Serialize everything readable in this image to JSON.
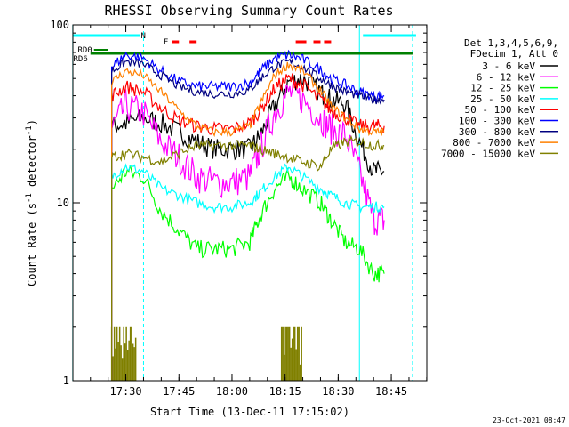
{
  "chart_data": {
    "type": "line",
    "title": "RHESSI Observing Summary Count Rates",
    "xlabel": "Start Time (13-Dec-11 17:15:02)",
    "ylabel": "Count Rate (s",
    "ylabel_sup": "-1",
    "ylabel_tail": " detector",
    "ylabel_end": ")",
    "ylog": true,
    "ylim": [
      1,
      100
    ],
    "xlim": [
      "17:15:02",
      "18:55:02"
    ],
    "y_ticks": [
      "1",
      "10",
      "100"
    ],
    "x_ticks": [
      "17:30",
      "17:45",
      "18:00",
      "18:15",
      "18:30",
      "18:45"
    ],
    "legend": {
      "header": [
        "Det 1,3,4,5,6,9,",
        "FDecim 1, Att 0"
      ],
      "placement": "right"
    },
    "footer_timestamp": "23-Oct-2021 08:47",
    "flags": [
      {
        "label": "N",
        "color": "#00ffff",
        "segments": [
          [
            "17:15",
            "17:34"
          ],
          [
            "18:37",
            "18:52"
          ]
        ]
      },
      {
        "label": "F",
        "color": "#ff0000",
        "segments": [
          [
            "17:43",
            "17:45"
          ],
          [
            "17:48",
            "17:50"
          ],
          [
            "18:18",
            "18:21"
          ],
          [
            "18:23",
            "18:25"
          ],
          [
            "18:26",
            "18:28"
          ]
        ]
      },
      {
        "label": "RD0",
        "color": "#008000",
        "segments": [
          [
            "17:21",
            "17:25"
          ]
        ]
      },
      {
        "label": "RD6",
        "color": "#008000",
        "segments": [
          [
            "17:20",
            "18:51"
          ]
        ]
      }
    ],
    "vlines": [
      {
        "time": "17:15",
        "color": "#00ffff",
        "style": "solid"
      },
      {
        "time": "17:35",
        "color": "#00ffff",
        "style": "dashed"
      },
      {
        "time": "18:36",
        "color": "#00ffff",
        "style": "solid"
      },
      {
        "time": "18:51",
        "color": "#00ffff",
        "style": "dashed"
      }
    ],
    "x_knots": [
      "17:26",
      "17:30",
      "17:35",
      "17:40",
      "17:45",
      "17:50",
      "17:55",
      "18:00",
      "18:05",
      "18:08",
      "18:12",
      "18:16",
      "18:20",
      "18:25",
      "18:28",
      "18:32",
      "18:36",
      "18:40",
      "18:43"
    ],
    "series": [
      {
        "name": "3 - 6 keV",
        "color": "#000000",
        "values": [
          27,
          28,
          30,
          28,
          25,
          22,
          20,
          20,
          20,
          24,
          35,
          48,
          50,
          42,
          38,
          36,
          22,
          15,
          15
        ]
      },
      {
        "name": "6 - 12 keV",
        "color": "#ff00ff",
        "values": [
          26,
          35,
          32,
          22,
          18,
          14,
          13,
          13,
          14,
          20,
          32,
          42,
          38,
          30,
          26,
          24,
          15,
          8,
          8
        ]
      },
      {
        "name": "12 - 25 keV",
        "color": "#00ff00",
        "values": [
          12,
          15,
          14,
          9,
          7,
          5.5,
          5.5,
          5.5,
          6,
          8.5,
          12,
          14,
          12,
          10,
          8,
          6,
          5.5,
          4,
          4
        ]
      },
      {
        "name": "25 - 50 keV",
        "color": "#00ffff",
        "values": [
          14,
          16,
          15,
          12,
          11,
          10,
          9.5,
          9.5,
          10,
          11.5,
          14,
          16,
          14,
          12,
          11,
          10,
          9.5,
          9.5,
          9.5
        ]
      },
      {
        "name": "50 - 100 keV",
        "color": "#ff0000",
        "values": [
          40,
          45,
          42,
          34,
          29,
          27,
          26,
          26,
          28,
          33,
          44,
          50,
          46,
          38,
          33,
          30,
          27,
          27,
          27
        ]
      },
      {
        "name": "100 - 300 keV",
        "color": "#0000ff",
        "values": [
          58,
          68,
          65,
          55,
          48,
          45,
          45,
          45,
          47,
          55,
          65,
          68,
          64,
          56,
          50,
          46,
          42,
          40,
          40
        ]
      },
      {
        "name": "300 - 800 keV",
        "color": "#000080",
        "values": [
          55,
          62,
          60,
          52,
          45,
          42,
          41,
          41,
          43,
          50,
          58,
          62,
          58,
          50,
          46,
          42,
          40,
          38,
          38
        ]
      },
      {
        "name": "800 - 7000 keV",
        "color": "#ff8000",
        "values": [
          48,
          55,
          52,
          42,
          33,
          27,
          25,
          25,
          27,
          36,
          52,
          60,
          55,
          43,
          35,
          30,
          26,
          25,
          25
        ]
      },
      {
        "name": "7000 - 15000 keV",
        "color": "#808000",
        "values": [
          18,
          19,
          18,
          17,
          19,
          21,
          21,
          21,
          21,
          20,
          19,
          18,
          17,
          16,
          20,
          22,
          22,
          21,
          21
        ]
      }
    ],
    "spikes": {
      "color": "#808000",
      "ranges": [
        [
          "17:26",
          "17:33"
        ],
        [
          "18:14",
          "18:20"
        ]
      ],
      "ymin": 1,
      "ymax": 2
    }
  }
}
